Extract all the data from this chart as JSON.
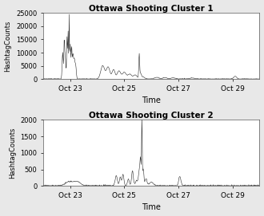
{
  "title1": "Ottawa Shooting Cluster 1",
  "title2": "Ottawa Shooting Cluster 2",
  "xlabel": "Time",
  "ylabel": "HashtagCounts",
  "fig_facecolor": "#e8e8e8",
  "plot_facecolor": "#ffffff",
  "line_color": "#2a2a2a",
  "cluster1": {
    "ylim": [
      0,
      25000
    ],
    "yticks": [
      0,
      5000,
      10000,
      15000,
      20000,
      25000
    ],
    "ytick_labels": [
      "0",
      "5000",
      "10000",
      "15000",
      "20000",
      "25000"
    ]
  },
  "cluster2": {
    "ylim": [
      0,
      2000
    ],
    "yticks": [
      0,
      500,
      1000,
      1500,
      2000
    ],
    "ytick_labels": [
      "0",
      "500",
      "1000",
      "1500",
      "2000"
    ]
  },
  "xtick_positions": [
    1,
    3,
    5,
    7
  ],
  "xtick_labels": [
    "Oct 23",
    "Oct 25",
    "Oct 27",
    "Oct 29"
  ],
  "xlim": [
    0,
    8
  ]
}
